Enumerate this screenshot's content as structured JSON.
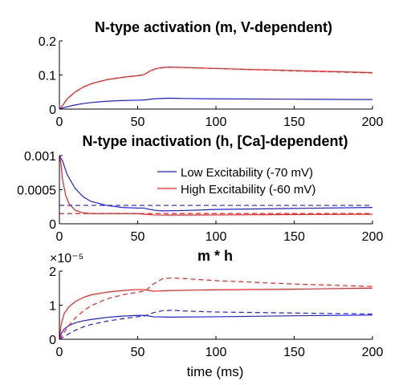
{
  "chart_data": [
    {
      "type": "line",
      "title": "N-type activation (m, V-dependent)",
      "xlabel": "",
      "ylabel": "",
      "xlim": [
        0,
        200
      ],
      "ylim": [
        0,
        0.2
      ],
      "xticks": [
        "0",
        "50",
        "100",
        "150",
        "200"
      ],
      "yticks": [
        "0",
        "0.1",
        "0.2"
      ],
      "exponent_label": "",
      "series": [
        {
          "color": "#1a1aff",
          "dash": false,
          "points": [
            [
              0,
              0
            ],
            [
              2,
              0.003
            ],
            [
              5,
              0.007
            ],
            [
              10,
              0.012
            ],
            [
              15,
              0.016
            ],
            [
              20,
              0.019
            ],
            [
              30,
              0.023
            ],
            [
              40,
              0.025
            ],
            [
              50,
              0.026
            ],
            [
              55,
              0.027
            ],
            [
              60,
              0.03
            ],
            [
              70,
              0.032
            ],
            [
              80,
              0.031
            ],
            [
              100,
              0.03
            ],
            [
              150,
              0.029
            ],
            [
              200,
              0.028
            ]
          ]
        },
        {
          "color": "#ff1a1a",
          "dash": false,
          "points": [
            [
              0,
              0
            ],
            [
              2,
              0.01
            ],
            [
              5,
              0.03
            ],
            [
              10,
              0.05
            ],
            [
              15,
              0.064
            ],
            [
              20,
              0.074
            ],
            [
              30,
              0.086
            ],
            [
              40,
              0.093
            ],
            [
              50,
              0.098
            ],
            [
              54,
              0.101
            ],
            [
              58,
              0.112
            ],
            [
              62,
              0.119
            ],
            [
              66,
              0.122
            ],
            [
              70,
              0.123
            ],
            [
              80,
              0.122
            ],
            [
              100,
              0.119
            ],
            [
              150,
              0.113
            ],
            [
              200,
              0.107
            ]
          ]
        },
        {
          "color": "#ff1a1a",
          "dash": true,
          "points": [
            [
              0,
              0
            ],
            [
              2,
              0.01
            ],
            [
              5,
              0.03
            ],
            [
              10,
              0.05
            ],
            [
              15,
              0.064
            ],
            [
              20,
              0.074
            ],
            [
              30,
              0.086
            ],
            [
              40,
              0.093
            ],
            [
              50,
              0.098
            ],
            [
              54,
              0.101
            ],
            [
              58,
              0.112
            ],
            [
              62,
              0.119
            ],
            [
              66,
              0.122
            ],
            [
              70,
              0.123
            ],
            [
              80,
              0.122
            ],
            [
              100,
              0.119
            ],
            [
              150,
              0.112
            ],
            [
              200,
              0.106
            ]
          ]
        }
      ]
    },
    {
      "type": "line",
      "title": "N-type inactivation (h, [Ca]-dependent)",
      "xlabel": "",
      "ylabel": "",
      "xlim": [
        0,
        200
      ],
      "ylim": [
        0,
        0.001
      ],
      "xticks": [
        "0",
        "50",
        "100",
        "150",
        "200"
      ],
      "yticks": [
        "0",
        "0.0005",
        "0.001"
      ],
      "exponent_label": "",
      "legend": {
        "placement": "top-right",
        "entries": [
          {
            "label": "Low Excitability  (-70 mV)",
            "color": "#1a1aff"
          },
          {
            "label": "High Excitability (-60 mV)",
            "color": "#ff1a1a"
          }
        ]
      },
      "series": [
        {
          "color": "#1a1aff",
          "dash": false,
          "points": [
            [
              0,
              0.001
            ],
            [
              2,
              0.00092
            ],
            [
              5,
              0.00072
            ],
            [
              10,
              0.00052
            ],
            [
              15,
              0.0004
            ],
            [
              20,
              0.00033
            ],
            [
              30,
              0.00027
            ],
            [
              40,
              0.00024
            ],
            [
              50,
              0.00023
            ],
            [
              54,
              0.00023
            ],
            [
              58,
              0.00021
            ],
            [
              62,
              0.000195
            ],
            [
              66,
              0.00019
            ],
            [
              80,
              0.000195
            ],
            [
              100,
              0.00021
            ],
            [
              150,
              0.000225
            ],
            [
              200,
              0.00024
            ]
          ]
        },
        {
          "color": "#ff1a1a",
          "dash": false,
          "points": [
            [
              0,
              0.001
            ],
            [
              1,
              0.00088
            ],
            [
              2,
              0.00065
            ],
            [
              4,
              0.00042
            ],
            [
              6,
              0.0003
            ],
            [
              10,
              0.0002
            ],
            [
              15,
              0.00016
            ],
            [
              20,
              0.00015
            ],
            [
              30,
              0.00015
            ],
            [
              50,
              0.00015
            ],
            [
              55,
              0.00014
            ],
            [
              60,
              0.00013
            ],
            [
              70,
              0.000128
            ],
            [
              100,
              0.00013
            ],
            [
              150,
              0.000135
            ],
            [
              200,
              0.00014
            ]
          ]
        },
        {
          "color": "#1a1aff",
          "dash": true,
          "points": [
            [
              0,
              0.00027
            ],
            [
              200,
              0.00027
            ]
          ]
        },
        {
          "color": "#ff1a1a",
          "dash": true,
          "points": [
            [
              0,
              0.00015
            ],
            [
              200,
              0.00015
            ]
          ]
        }
      ]
    },
    {
      "type": "line",
      "title": "m * h",
      "xlabel": "time (ms)",
      "ylabel": "",
      "xlim": [
        0,
        200
      ],
      "ylim": [
        0,
        2
      ],
      "xticks": [
        "0",
        "50",
        "100",
        "150",
        "200"
      ],
      "yticks": [
        "0",
        "1",
        "2"
      ],
      "exponent_label": "×10⁻⁵",
      "series": [
        {
          "color": "#1a1aff",
          "dash": false,
          "points": [
            [
              0,
              0
            ],
            [
              1,
              0.15
            ],
            [
              3,
              0.3
            ],
            [
              6,
              0.4
            ],
            [
              10,
              0.48
            ],
            [
              15,
              0.54
            ],
            [
              20,
              0.58
            ],
            [
              30,
              0.64
            ],
            [
              40,
              0.68
            ],
            [
              50,
              0.7
            ],
            [
              55,
              0.7
            ],
            [
              60,
              0.66
            ],
            [
              70,
              0.65
            ],
            [
              100,
              0.66
            ],
            [
              150,
              0.69
            ],
            [
              200,
              0.71
            ]
          ]
        },
        {
          "color": "#ff1a1a",
          "dash": false,
          "points": [
            [
              0,
              0
            ],
            [
              1,
              0.4
            ],
            [
              3,
              0.75
            ],
            [
              6,
              0.95
            ],
            [
              10,
              1.1
            ],
            [
              15,
              1.22
            ],
            [
              20,
              1.3
            ],
            [
              30,
              1.38
            ],
            [
              40,
              1.43
            ],
            [
              50,
              1.46
            ],
            [
              55,
              1.45
            ],
            [
              60,
              1.41
            ],
            [
              70,
              1.43
            ],
            [
              100,
              1.45
            ],
            [
              150,
              1.47
            ],
            [
              200,
              1.5
            ]
          ]
        },
        {
          "color": "#1a1aff",
          "dash": true,
          "points": [
            [
              0,
              0
            ],
            [
              3,
              0.08
            ],
            [
              6,
              0.16
            ],
            [
              10,
              0.26
            ],
            [
              15,
              0.36
            ],
            [
              20,
              0.43
            ],
            [
              30,
              0.53
            ],
            [
              40,
              0.6
            ],
            [
              50,
              0.66
            ],
            [
              55,
              0.69
            ],
            [
              60,
              0.78
            ],
            [
              66,
              0.84
            ],
            [
              72,
              0.85
            ],
            [
              80,
              0.83
            ],
            [
              100,
              0.8
            ],
            [
              150,
              0.77
            ],
            [
              200,
              0.74
            ]
          ]
        },
        {
          "color": "#ff1a1a",
          "dash": true,
          "points": [
            [
              0,
              0
            ],
            [
              3,
              0.2
            ],
            [
              6,
              0.4
            ],
            [
              10,
              0.62
            ],
            [
              15,
              0.82
            ],
            [
              20,
              0.98
            ],
            [
              30,
              1.18
            ],
            [
              40,
              1.3
            ],
            [
              50,
              1.38
            ],
            [
              55,
              1.42
            ],
            [
              60,
              1.62
            ],
            [
              66,
              1.78
            ],
            [
              72,
              1.8
            ],
            [
              80,
              1.78
            ],
            [
              100,
              1.72
            ],
            [
              150,
              1.62
            ],
            [
              200,
              1.55
            ]
          ]
        }
      ]
    }
  ]
}
